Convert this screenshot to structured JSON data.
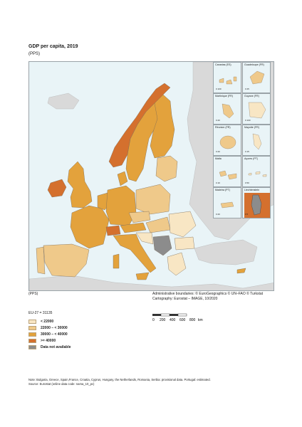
{
  "title": "GDP per capita, 2019",
  "subtitle": "(PPS)",
  "unit_label": "(PPS)",
  "credits": {
    "line1": "Administrative boundaries: © EuroGeographics © UN–FAO © Turkstat",
    "line2": "Cartography: Eurostat – IMAGE, 10/2020"
  },
  "scale_bar": {
    "ticks": [
      "0",
      "200",
      "400",
      "600",
      "800"
    ],
    "unit": "km"
  },
  "legend": {
    "eu_value": "EU-27 = 31135",
    "classes": [
      {
        "label": "< 22000",
        "color": "#f8e6c4"
      },
      {
        "label": "22000 – < 30000",
        "color": "#efc98a"
      },
      {
        "label": "30000 – < 40000",
        "color": "#e3a23c"
      },
      {
        "label": ">= 40000",
        "color": "#d4702e"
      },
      {
        "label": "Data not available",
        "color": "#8c8c8c"
      }
    ]
  },
  "colors": {
    "sea": "#e9f4f7",
    "non_eu": "#d9d9d9",
    "border": "#7a6a55"
  },
  "insets": [
    {
      "name": "Canarias (ES)",
      "scale": "0   100"
    },
    {
      "name": "Guadeloupe (FR)",
      "scale": "0   25"
    },
    {
      "name": "Martinique (FR)",
      "scale": "0   20"
    },
    {
      "name": "Guyane (FR)",
      "scale": "0   100"
    },
    {
      "name": "Réunion (FR)",
      "scale": "0   20"
    },
    {
      "name": "Mayotte (FR)",
      "scale": "0   15"
    },
    {
      "name": "Malta",
      "scale": "0   10"
    },
    {
      "name": "Açores (PT)",
      "scale": "0   50"
    },
    {
      "name": "Madeira (PT)",
      "scale": "0   20"
    },
    {
      "name": "Liechtenstein",
      "scale": "0   5"
    }
  ],
  "note": {
    "line1": "Note: Bulgaria, Greece, Spain,France, Croatia, Cyprus, Hungary, the Netherlands, Romania, Serbia: provisional data. Portugal: estimated.",
    "line2": "Source: Eurostat (online data code: nama_10_pc)"
  }
}
